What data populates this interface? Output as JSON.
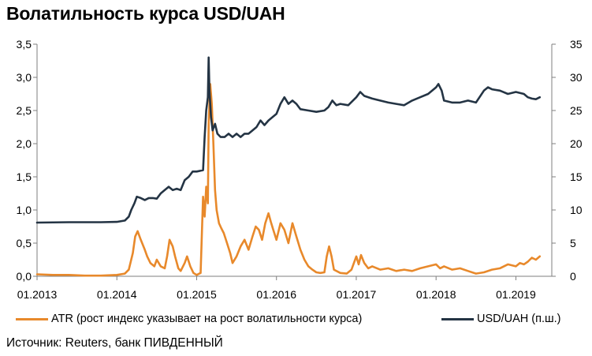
{
  "title": "Волатильность курса USD/UAH",
  "source": "Источник: Reuters, банк ПИВДЕННЫЙ",
  "colors": {
    "atr": "#E8892B",
    "usd": "#243444",
    "axis": "#7f7f7f"
  },
  "legend": [
    {
      "key": "atr",
      "label": "ATR (рост индекс указывает на рост волатильности курса)"
    },
    {
      "key": "usd",
      "label": "USD/UAH (п.ш.)"
    }
  ],
  "chart_data": {
    "type": "line",
    "x_ticks": [
      "01.2013",
      "01.2014",
      "01.2015",
      "01.2016",
      "01.2017",
      "01.2018",
      "01.2019"
    ],
    "x_range": [
      2013.0,
      2019.45
    ],
    "y_left": {
      "ticks": [
        "0,0",
        "0,5",
        "1,0",
        "1,5",
        "2,0",
        "2,5",
        "3,0",
        "3,5"
      ],
      "range": [
        0,
        3.5
      ]
    },
    "y_right": {
      "ticks": [
        "0",
        "5",
        "10",
        "15",
        "20",
        "25",
        "30",
        "35"
      ],
      "range": [
        0,
        35
      ]
    },
    "grid": false,
    "legend_position": "bottom",
    "series": [
      {
        "name": "ATR (рост индекс указывает на рост волатильности курса)",
        "axis": "left",
        "color": "#E8892B",
        "points": [
          [
            2013.0,
            0.03
          ],
          [
            2013.2,
            0.02
          ],
          [
            2013.4,
            0.02
          ],
          [
            2013.6,
            0.01
          ],
          [
            2013.8,
            0.01
          ],
          [
            2014.0,
            0.02
          ],
          [
            2014.1,
            0.04
          ],
          [
            2014.15,
            0.1
          ],
          [
            2014.2,
            0.35
          ],
          [
            2014.23,
            0.6
          ],
          [
            2014.26,
            0.68
          ],
          [
            2014.3,
            0.55
          ],
          [
            2014.35,
            0.4
          ],
          [
            2014.38,
            0.3
          ],
          [
            2014.42,
            0.2
          ],
          [
            2014.47,
            0.15
          ],
          [
            2014.5,
            0.25
          ],
          [
            2014.55,
            0.15
          ],
          [
            2014.6,
            0.12
          ],
          [
            2014.63,
            0.3
          ],
          [
            2014.66,
            0.55
          ],
          [
            2014.7,
            0.45
          ],
          [
            2014.73,
            0.3
          ],
          [
            2014.77,
            0.12
          ],
          [
            2014.8,
            0.08
          ],
          [
            2014.85,
            0.2
          ],
          [
            2014.88,
            0.3
          ],
          [
            2014.92,
            0.15
          ],
          [
            2014.96,
            0.05
          ],
          [
            2015.0,
            0.02
          ],
          [
            2015.05,
            0.05
          ],
          [
            2015.08,
            1.2
          ],
          [
            2015.1,
            0.9
          ],
          [
            2015.12,
            1.35
          ],
          [
            2015.14,
            1.1
          ],
          [
            2015.15,
            2.3
          ],
          [
            2015.17,
            2.9
          ],
          [
            2015.19,
            2.6
          ],
          [
            2015.21,
            2.0
          ],
          [
            2015.23,
            1.3
          ],
          [
            2015.25,
            1.0
          ],
          [
            2015.28,
            0.8
          ],
          [
            2015.31,
            0.72
          ],
          [
            2015.34,
            0.65
          ],
          [
            2015.38,
            0.5
          ],
          [
            2015.42,
            0.35
          ],
          [
            2015.45,
            0.2
          ],
          [
            2015.5,
            0.3
          ],
          [
            2015.55,
            0.45
          ],
          [
            2015.6,
            0.55
          ],
          [
            2015.65,
            0.4
          ],
          [
            2015.7,
            0.6
          ],
          [
            2015.74,
            0.75
          ],
          [
            2015.78,
            0.7
          ],
          [
            2015.82,
            0.55
          ],
          [
            2015.86,
            0.8
          ],
          [
            2015.9,
            0.95
          ],
          [
            2015.93,
            0.82
          ],
          [
            2015.96,
            0.7
          ],
          [
            2016.0,
            0.55
          ],
          [
            2016.05,
            0.8
          ],
          [
            2016.1,
            0.7
          ],
          [
            2016.15,
            0.5
          ],
          [
            2016.2,
            0.8
          ],
          [
            2016.25,
            0.6
          ],
          [
            2016.3,
            0.4
          ],
          [
            2016.35,
            0.25
          ],
          [
            2016.4,
            0.15
          ],
          [
            2016.45,
            0.1
          ],
          [
            2016.5,
            0.06
          ],
          [
            2016.55,
            0.05
          ],
          [
            2016.6,
            0.06
          ],
          [
            2016.63,
            0.3
          ],
          [
            2016.66,
            0.45
          ],
          [
            2016.69,
            0.3
          ],
          [
            2016.72,
            0.1
          ],
          [
            2016.8,
            0.05
          ],
          [
            2016.88,
            0.04
          ],
          [
            2016.94,
            0.1
          ],
          [
            2017.0,
            0.3
          ],
          [
            2017.03,
            0.18
          ],
          [
            2017.06,
            0.32
          ],
          [
            2017.1,
            0.2
          ],
          [
            2017.15,
            0.12
          ],
          [
            2017.2,
            0.15
          ],
          [
            2017.3,
            0.1
          ],
          [
            2017.4,
            0.12
          ],
          [
            2017.5,
            0.08
          ],
          [
            2017.6,
            0.1
          ],
          [
            2017.7,
            0.08
          ],
          [
            2017.8,
            0.12
          ],
          [
            2017.9,
            0.15
          ],
          [
            2018.0,
            0.18
          ],
          [
            2018.05,
            0.12
          ],
          [
            2018.1,
            0.15
          ],
          [
            2018.2,
            0.1
          ],
          [
            2018.3,
            0.12
          ],
          [
            2018.4,
            0.08
          ],
          [
            2018.5,
            0.04
          ],
          [
            2018.6,
            0.06
          ],
          [
            2018.7,
            0.1
          ],
          [
            2018.8,
            0.12
          ],
          [
            2018.9,
            0.18
          ],
          [
            2019.0,
            0.15
          ],
          [
            2019.05,
            0.2
          ],
          [
            2019.1,
            0.18
          ],
          [
            2019.15,
            0.22
          ],
          [
            2019.2,
            0.28
          ],
          [
            2019.25,
            0.25
          ],
          [
            2019.3,
            0.3
          ]
        ]
      },
      {
        "name": "USD/UAH (п.ш.)",
        "axis": "right",
        "color": "#243444",
        "points": [
          [
            2013.0,
            8.1
          ],
          [
            2013.4,
            8.15
          ],
          [
            2013.8,
            8.15
          ],
          [
            2014.0,
            8.2
          ],
          [
            2014.1,
            8.4
          ],
          [
            2014.15,
            9.0
          ],
          [
            2014.18,
            10.0
          ],
          [
            2014.22,
            11.0
          ],
          [
            2014.25,
            12.0
          ],
          [
            2014.3,
            11.8
          ],
          [
            2014.35,
            11.5
          ],
          [
            2014.4,
            11.8
          ],
          [
            2014.45,
            11.8
          ],
          [
            2014.5,
            11.7
          ],
          [
            2014.55,
            12.5
          ],
          [
            2014.6,
            13.0
          ],
          [
            2014.65,
            13.5
          ],
          [
            2014.7,
            13.0
          ],
          [
            2014.75,
            13.2
          ],
          [
            2014.8,
            13.0
          ],
          [
            2014.85,
            14.5
          ],
          [
            2014.9,
            15.0
          ],
          [
            2014.95,
            15.8
          ],
          [
            2015.0,
            15.8
          ],
          [
            2015.08,
            16.0
          ],
          [
            2015.1,
            21.0
          ],
          [
            2015.12,
            25.0
          ],
          [
            2015.14,
            27.0
          ],
          [
            2015.15,
            33.0
          ],
          [
            2015.16,
            28.0
          ],
          [
            2015.18,
            24.0
          ],
          [
            2015.2,
            22.0
          ],
          [
            2015.23,
            23.0
          ],
          [
            2015.26,
            21.5
          ],
          [
            2015.3,
            21.0
          ],
          [
            2015.35,
            21.0
          ],
          [
            2015.4,
            21.5
          ],
          [
            2015.45,
            21.0
          ],
          [
            2015.5,
            21.5
          ],
          [
            2015.55,
            21.0
          ],
          [
            2015.6,
            21.5
          ],
          [
            2015.65,
            21.5
          ],
          [
            2015.7,
            22.0
          ],
          [
            2015.75,
            22.5
          ],
          [
            2015.8,
            23.5
          ],
          [
            2015.85,
            22.8
          ],
          [
            2015.9,
            23.5
          ],
          [
            2015.95,
            24.0
          ],
          [
            2016.0,
            24.5
          ],
          [
            2016.05,
            26.0
          ],
          [
            2016.1,
            27.0
          ],
          [
            2016.15,
            26.0
          ],
          [
            2016.2,
            26.5
          ],
          [
            2016.25,
            26.0
          ],
          [
            2016.3,
            25.2
          ],
          [
            2016.4,
            25.0
          ],
          [
            2016.5,
            24.8
          ],
          [
            2016.6,
            25.0
          ],
          [
            2016.65,
            25.5
          ],
          [
            2016.7,
            26.5
          ],
          [
            2016.75,
            25.8
          ],
          [
            2016.8,
            26.0
          ],
          [
            2016.9,
            25.8
          ],
          [
            2017.0,
            27.0
          ],
          [
            2017.05,
            27.8
          ],
          [
            2017.1,
            27.2
          ],
          [
            2017.2,
            26.8
          ],
          [
            2017.3,
            26.5
          ],
          [
            2017.4,
            26.2
          ],
          [
            2017.5,
            26.0
          ],
          [
            2017.6,
            25.8
          ],
          [
            2017.7,
            26.5
          ],
          [
            2017.8,
            27.0
          ],
          [
            2017.9,
            27.5
          ],
          [
            2018.0,
            28.5
          ],
          [
            2018.03,
            29.0
          ],
          [
            2018.07,
            28.0
          ],
          [
            2018.1,
            26.5
          ],
          [
            2018.2,
            26.2
          ],
          [
            2018.3,
            26.2
          ],
          [
            2018.4,
            26.5
          ],
          [
            2018.5,
            26.2
          ],
          [
            2018.6,
            28.0
          ],
          [
            2018.65,
            28.5
          ],
          [
            2018.7,
            28.2
          ],
          [
            2018.8,
            28.0
          ],
          [
            2018.9,
            27.5
          ],
          [
            2019.0,
            27.8
          ],
          [
            2019.1,
            27.5
          ],
          [
            2019.15,
            27.0
          ],
          [
            2019.2,
            26.8
          ],
          [
            2019.25,
            26.7
          ],
          [
            2019.3,
            27.0
          ]
        ]
      }
    ]
  }
}
